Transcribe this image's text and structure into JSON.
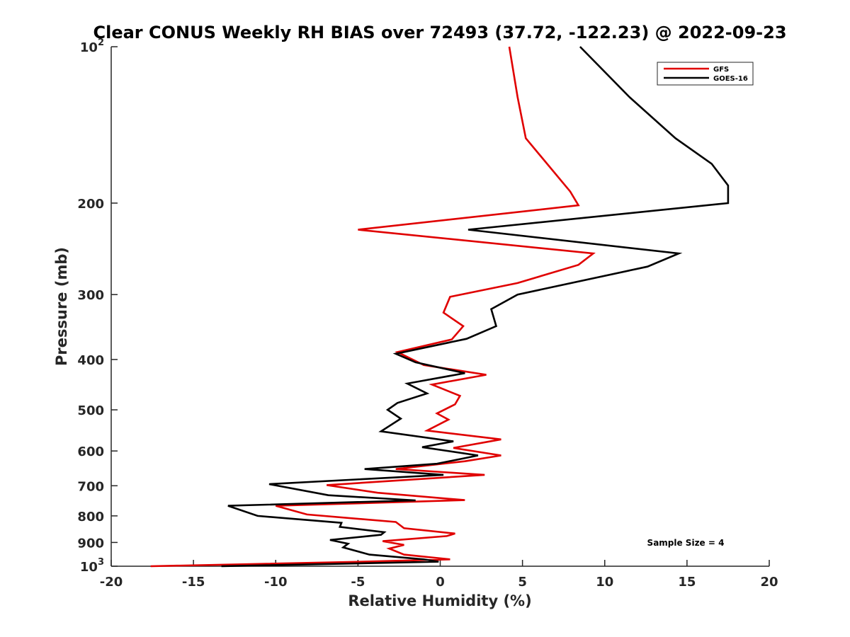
{
  "chart_data": {
    "type": "line",
    "title": "Clear CONUS Weekly RH BIAS over 72493 (37.72, -122.23) @ 2022-09-23",
    "xlabel": "Relative Humidity (%)",
    "ylabel": "Pressure (mb)",
    "xlim": [
      -20,
      20
    ],
    "ylim": [
      100,
      1000
    ],
    "y_scale": "log",
    "y_reversed": true,
    "grid": false,
    "legend_position": "top-right",
    "x_ticks": [
      -20,
      -15,
      -10,
      -5,
      0,
      5,
      10,
      15,
      20
    ],
    "x_tick_labels": [
      "-20",
      "-15",
      "-10",
      "-5",
      "0",
      "5",
      "10",
      "15",
      "20"
    ],
    "y_ticks": [
      {
        "value": 100,
        "base": "10",
        "exp": "2"
      },
      {
        "value": 200,
        "base": "200",
        "exp": ""
      },
      {
        "value": 300,
        "base": "300",
        "exp": ""
      },
      {
        "value": 400,
        "base": "400",
        "exp": ""
      },
      {
        "value": 500,
        "base": "500",
        "exp": ""
      },
      {
        "value": 600,
        "base": "600",
        "exp": ""
      },
      {
        "value": 700,
        "base": "700",
        "exp": ""
      },
      {
        "value": 800,
        "base": "800",
        "exp": ""
      },
      {
        "value": 900,
        "base": "900",
        "exp": ""
      },
      {
        "value": 1000,
        "base": "10",
        "exp": "3"
      }
    ],
    "annotation": "Sample Size = 4",
    "series": [
      {
        "name": "GFS",
        "color": "#e00000",
        "points": [
          [
            4.2,
            100
          ],
          [
            4.7,
            125
          ],
          [
            5.2,
            150
          ],
          [
            7.9,
            190
          ],
          [
            8.4,
            202
          ],
          [
            -5.0,
            225
          ],
          [
            9.3,
            250
          ],
          [
            8.4,
            263
          ],
          [
            4.7,
            285
          ],
          [
            0.6,
            303
          ],
          [
            0.2,
            325
          ],
          [
            1.4,
            345
          ],
          [
            0.7,
            366
          ],
          [
            -2.6,
            387
          ],
          [
            -1.0,
            410
          ],
          [
            2.8,
            428
          ],
          [
            -0.5,
            447
          ],
          [
            1.2,
            470
          ],
          [
            0.9,
            488
          ],
          [
            -0.2,
            508
          ],
          [
            0.5,
            522
          ],
          [
            -0.8,
            548
          ],
          [
            3.7,
            570
          ],
          [
            0.8,
            592
          ],
          [
            3.7,
            612
          ],
          [
            1.5,
            628
          ],
          [
            -2.7,
            650
          ],
          [
            2.7,
            667
          ],
          [
            -6.9,
            698
          ],
          [
            -3.8,
            722
          ],
          [
            1.5,
            746
          ],
          [
            -10.0,
            765
          ],
          [
            -8.1,
            795
          ],
          [
            -2.7,
            822
          ],
          [
            -2.2,
            845
          ],
          [
            0.9,
            865
          ],
          [
            0.4,
            875
          ],
          [
            -3.5,
            895
          ],
          [
            -2.2,
            910
          ],
          [
            -3.1,
            925
          ],
          [
            -2.2,
            950
          ],
          [
            0.6,
            970
          ],
          [
            -4.7,
            980
          ],
          [
            -17.6,
            1000
          ]
        ]
      },
      {
        "name": "GOES-16",
        "color": "#000000",
        "points": [
          [
            8.5,
            100
          ],
          [
            11.5,
            125
          ],
          [
            14.3,
            150
          ],
          [
            16.5,
            168
          ],
          [
            17.5,
            185
          ],
          [
            17.5,
            200
          ],
          [
            1.7,
            225
          ],
          [
            14.5,
            250
          ],
          [
            12.6,
            265
          ],
          [
            4.7,
            300
          ],
          [
            3.1,
            320
          ],
          [
            3.4,
            345
          ],
          [
            1.6,
            365
          ],
          [
            -2.7,
            390
          ],
          [
            -1.5,
            405
          ],
          [
            1.5,
            425
          ],
          [
            -2.0,
            445
          ],
          [
            -0.8,
            465
          ],
          [
            -2.6,
            485
          ],
          [
            -3.2,
            500
          ],
          [
            -2.4,
            520
          ],
          [
            -3.6,
            550
          ],
          [
            0.8,
            575
          ],
          [
            -1.1,
            590
          ],
          [
            2.3,
            612
          ],
          [
            -0.2,
            635
          ],
          [
            -4.6,
            650
          ],
          [
            0.2,
            667
          ],
          [
            -10.4,
            695
          ],
          [
            -6.8,
            730
          ],
          [
            -1.5,
            747
          ],
          [
            -12.9,
            765
          ],
          [
            -11.1,
            800
          ],
          [
            -6.0,
            825
          ],
          [
            -6.1,
            840
          ],
          [
            -3.4,
            860
          ],
          [
            -3.6,
            870
          ],
          [
            -6.7,
            890
          ],
          [
            -5.6,
            905
          ],
          [
            -5.9,
            920
          ],
          [
            -4.3,
            950
          ],
          [
            -1.0,
            970
          ],
          [
            -0.1,
            980
          ],
          [
            -13.3,
            1000
          ]
        ]
      }
    ]
  }
}
